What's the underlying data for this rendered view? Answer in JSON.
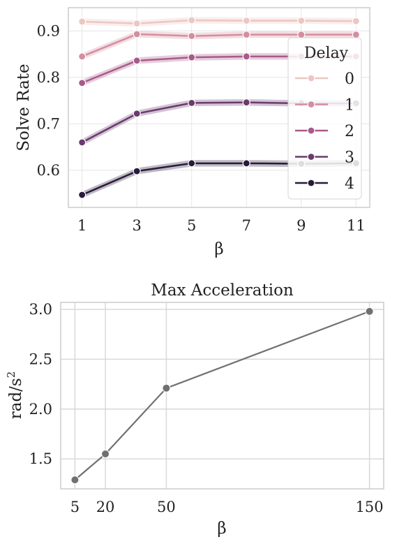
{
  "chart_data": [
    {
      "type": "line",
      "title": "",
      "xlabel": "β",
      "ylabel": "Solve Rate",
      "x": [
        1,
        3,
        5,
        7,
        9,
        11
      ],
      "x_ticks": [
        "1",
        "3",
        "5",
        "7",
        "9",
        "11"
      ],
      "y_ticks": [
        "0.6",
        "0.7",
        "0.8",
        "0.9"
      ],
      "xlim": [
        0.5,
        11.5
      ],
      "ylim": [
        0.52,
        0.95
      ],
      "grid": true,
      "legend_title": "Delay",
      "legend_position": "right",
      "series": [
        {
          "name": "0",
          "color": "#ebc7c3",
          "values": [
            0.92,
            0.916,
            0.923,
            0.922,
            0.922,
            0.921
          ]
        },
        {
          "name": "1",
          "color": "#d38ea0",
          "values": [
            0.845,
            0.893,
            0.889,
            0.892,
            0.892,
            0.892
          ]
        },
        {
          "name": "2",
          "color": "#a85a8a",
          "values": [
            0.788,
            0.836,
            0.843,
            0.845,
            0.845,
            0.845
          ]
        },
        {
          "name": "3",
          "color": "#6b3a6e",
          "values": [
            0.66,
            0.722,
            0.745,
            0.746,
            0.744,
            0.744
          ]
        },
        {
          "name": "4",
          "color": "#2a1b3a",
          "values": [
            0.547,
            0.598,
            0.615,
            0.615,
            0.614,
            0.615
          ]
        }
      ]
    },
    {
      "type": "line",
      "title": "Max Acceleration",
      "xlabel": "β",
      "ylabel_main": "rad/s",
      "ylabel_sup": "2",
      "x": [
        5,
        20,
        50,
        150
      ],
      "values": [
        1.29,
        1.55,
        2.21,
        2.98
      ],
      "x_ticks": [
        "5",
        "20",
        "50",
        "150"
      ],
      "y_ticks": [
        "1.5",
        "2.0",
        "2.5",
        "3.0"
      ],
      "xlim": [
        -2,
        157
      ],
      "ylim": [
        1.2,
        3.07
      ],
      "grid": true,
      "color": "#707070"
    }
  ]
}
